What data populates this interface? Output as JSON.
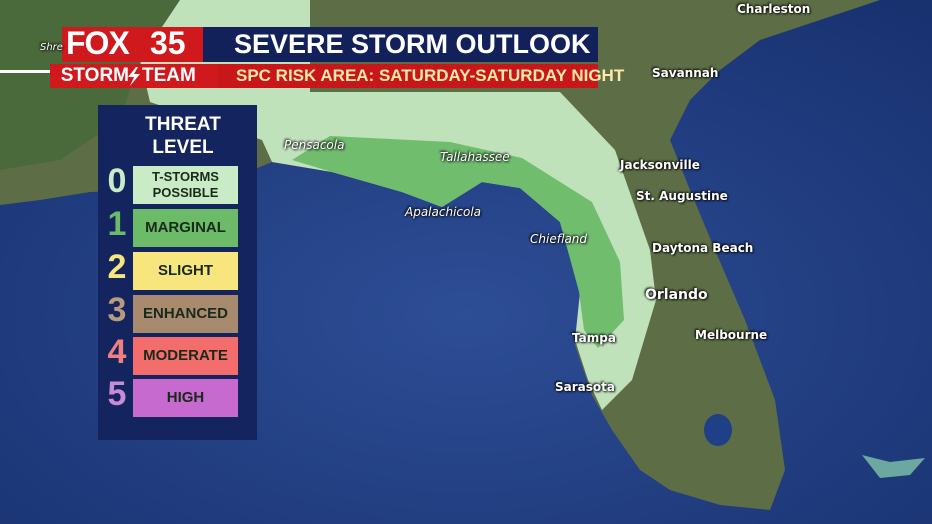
{
  "header": {
    "logo": {
      "brand": "FOX",
      "channel": "35",
      "team": [
        "STORM",
        "TEAM"
      ]
    },
    "title": "SEVERE STORM OUTLOOK",
    "subtitle": "SPC RISK AREA: SATURDAY-SATURDAY NIGHT"
  },
  "legend": {
    "title": "THREAT LEVEL",
    "levels": [
      {
        "level": "0",
        "label": "T-STORMS POSSIBLE",
        "color": "#c9ecc6",
        "number_color": "#c9ecc6"
      },
      {
        "level": "1",
        "label": "MARGINAL",
        "color": "#6cbb69",
        "number_color": "#6cbb69"
      },
      {
        "level": "2",
        "label": "SLIGHT",
        "color": "#f7e57e",
        "number_color": "#f7e57e"
      },
      {
        "level": "3",
        "label": "ENHANCED",
        "color": "#a88b6f",
        "number_color": "#b89b7f"
      },
      {
        "level": "4",
        "label": "MODERATE",
        "color": "#f36d6d",
        "number_color": "#f08080"
      },
      {
        "level": "5",
        "label": "HIGH",
        "color": "#c76ad0",
        "number_color": "#c98ad8"
      }
    ]
  },
  "map": {
    "cities": [
      "Charleston",
      "Savannah",
      "Jacksonville",
      "St. Augustine",
      "Daytona Beach",
      "Orlando",
      "Melbourne",
      "Tampa",
      "Sarasota",
      "Chiefland",
      "Apalachicola",
      "Tallahassee",
      "Pensacola",
      "Shre"
    ]
  }
}
